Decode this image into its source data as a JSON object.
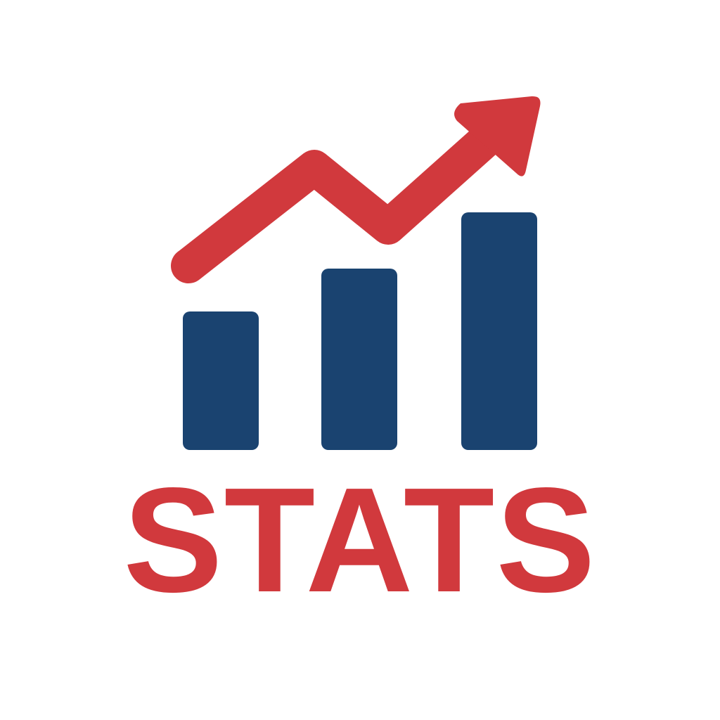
{
  "logo": {
    "wordmark": "STATS",
    "icon": "bar-chart-trend-arrow-icon",
    "colors": {
      "bar": "#1a4370",
      "arrow": "#d1393d",
      "text": "#d1393d",
      "background": "#ffffff"
    },
    "bar_levels": [
      0.33,
      0.52,
      0.71
    ]
  }
}
